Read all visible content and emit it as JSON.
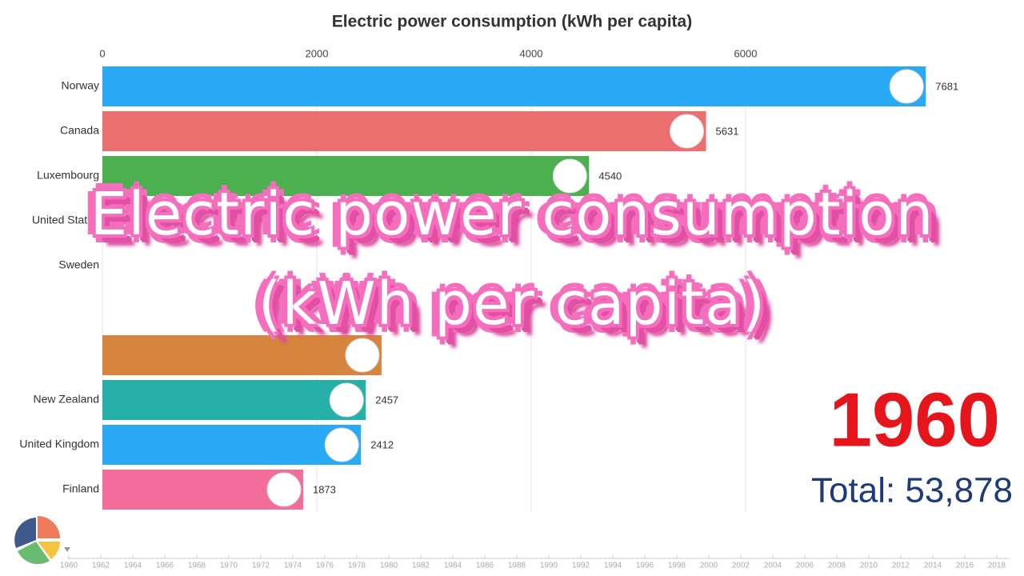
{
  "chart_data": {
    "type": "bar",
    "orientation": "horizontal",
    "title": "Electric power consumption (kWh per capita)",
    "categories": [
      "Norway",
      "Canada",
      "Luxembourg",
      "United States",
      "Sweden",
      null,
      null,
      "New Zealand",
      "United Kingdom",
      "Finland"
    ],
    "values": [
      7681,
      5631,
      4540,
      null,
      null,
      null,
      2604,
      2457,
      2412,
      1873
    ],
    "value_labels": [
      "7681",
      "5631",
      "4540",
      null,
      null,
      null,
      null,
      "2457",
      "2412",
      "1873"
    ],
    "colors": [
      "#2aa9f5",
      "#ec6f6f",
      "#4cb050",
      "#26b0a8",
      "#26b0a8",
      "#26b0a8",
      "#d7843e",
      "#26b0a8",
      "#2aa9f5",
      "#f26c9c"
    ],
    "xlim": [
      0,
      8000
    ],
    "xticks": [
      0,
      2000,
      4000,
      6000
    ],
    "grid": true,
    "year": "1960",
    "total_label": "Total: 53,878",
    "overlay_text": "Electric power consumption (kWh per capita)",
    "timeline": [
      1960,
      1962,
      1964,
      1966,
      1968,
      1970,
      1972,
      1974,
      1976,
      1978,
      1980,
      1982,
      1984,
      1986,
      1988,
      1990,
      1992,
      1994,
      1996,
      1998,
      2000,
      2002,
      2004,
      2006,
      2008,
      2010,
      2012,
      2014,
      2016,
      2018
    ]
  }
}
